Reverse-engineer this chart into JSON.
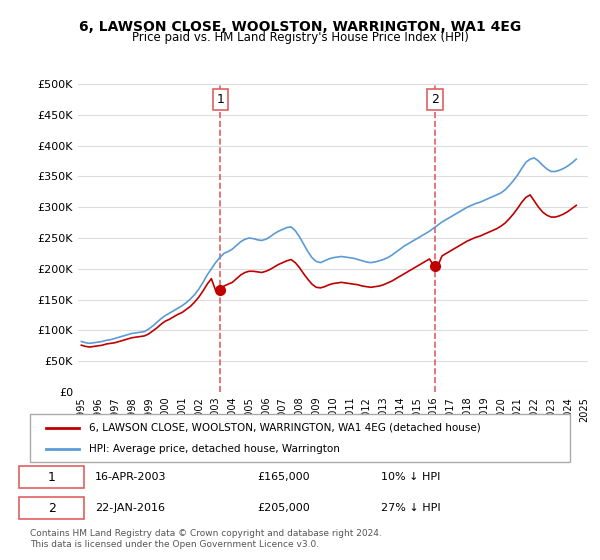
{
  "title": "6, LAWSON CLOSE, WOOLSTON, WARRINGTON, WA1 4EG",
  "subtitle": "Price paid vs. HM Land Registry's House Price Index (HPI)",
  "xlabel": "",
  "ylabel": "",
  "ylim": [
    0,
    500000
  ],
  "yticks": [
    0,
    50000,
    100000,
    150000,
    200000,
    250000,
    300000,
    350000,
    400000,
    450000,
    500000
  ],
  "ytick_labels": [
    "£0",
    "£50K",
    "£100K",
    "£150K",
    "£200K",
    "£250K",
    "£300K",
    "£350K",
    "£400K",
    "£450K",
    "£500K"
  ],
  "hpi_color": "#5b9bd5",
  "price_color": "#c00000",
  "marker_color": "#c00000",
  "dashed_line_color": "#e06060",
  "background_color": "#ffffff",
  "grid_color": "#dddddd",
  "sale1_date": 2003.29,
  "sale1_price": 165000,
  "sale1_label": "1",
  "sale2_date": 2016.07,
  "sale2_price": 205000,
  "sale2_label": "2",
  "legend_label1": "6, LAWSON CLOSE, WOOLSTON, WARRINGTON, WA1 4EG (detached house)",
  "legend_label2": "HPI: Average price, detached house, Warrington",
  "table_row1": "1     16-APR-2003     £165,000     10% ↓ HPI",
  "table_row2": "2     22-JAN-2016     £205,000     27% ↓ HPI",
  "footer": "Contains HM Land Registry data © Crown copyright and database right 2024.\nThis data is licensed under the Open Government Licence v3.0.",
  "hpi_years": [
    1995.0,
    1995.25,
    1995.5,
    1995.75,
    1996.0,
    1996.25,
    1996.5,
    1996.75,
    1997.0,
    1997.25,
    1997.5,
    1997.75,
    1998.0,
    1998.25,
    1998.5,
    1998.75,
    1999.0,
    1999.25,
    1999.5,
    1999.75,
    2000.0,
    2000.25,
    2000.5,
    2000.75,
    2001.0,
    2001.25,
    2001.5,
    2001.75,
    2002.0,
    2002.25,
    2002.5,
    2002.75,
    2003.0,
    2003.25,
    2003.5,
    2003.75,
    2004.0,
    2004.25,
    2004.5,
    2004.75,
    2005.0,
    2005.25,
    2005.5,
    2005.75,
    2006.0,
    2006.25,
    2006.5,
    2006.75,
    2007.0,
    2007.25,
    2007.5,
    2007.75,
    2008.0,
    2008.25,
    2008.5,
    2008.75,
    2009.0,
    2009.25,
    2009.5,
    2009.75,
    2010.0,
    2010.25,
    2010.5,
    2010.75,
    2011.0,
    2011.25,
    2011.5,
    2011.75,
    2012.0,
    2012.25,
    2012.5,
    2012.75,
    2013.0,
    2013.25,
    2013.5,
    2013.75,
    2014.0,
    2014.25,
    2014.5,
    2014.75,
    2015.0,
    2015.25,
    2015.5,
    2015.75,
    2016.0,
    2016.25,
    2016.5,
    2016.75,
    2017.0,
    2017.25,
    2017.5,
    2017.75,
    2018.0,
    2018.25,
    2018.5,
    2018.75,
    2019.0,
    2019.25,
    2019.5,
    2019.75,
    2020.0,
    2020.25,
    2020.5,
    2020.75,
    2021.0,
    2021.25,
    2021.5,
    2021.75,
    2022.0,
    2022.25,
    2022.5,
    2022.75,
    2023.0,
    2023.25,
    2023.5,
    2023.75,
    2024.0,
    2024.25,
    2024.5
  ],
  "hpi_values": [
    82000,
    80000,
    79000,
    80000,
    81000,
    82000,
    84000,
    85000,
    87000,
    89000,
    91000,
    93000,
    95000,
    96000,
    97000,
    98000,
    102000,
    107000,
    113000,
    119000,
    124000,
    128000,
    132000,
    136000,
    140000,
    145000,
    151000,
    158000,
    167000,
    178000,
    190000,
    200000,
    210000,
    218000,
    225000,
    228000,
    232000,
    238000,
    244000,
    248000,
    250000,
    249000,
    247000,
    246000,
    248000,
    252000,
    257000,
    261000,
    264000,
    267000,
    268000,
    262000,
    252000,
    240000,
    228000,
    218000,
    212000,
    210000,
    213000,
    216000,
    218000,
    219000,
    220000,
    219000,
    218000,
    217000,
    215000,
    213000,
    211000,
    210000,
    211000,
    213000,
    215000,
    218000,
    222000,
    227000,
    232000,
    237000,
    241000,
    245000,
    249000,
    253000,
    257000,
    261000,
    266000,
    271000,
    276000,
    280000,
    284000,
    288000,
    292000,
    296000,
    300000,
    303000,
    306000,
    308000,
    311000,
    314000,
    317000,
    320000,
    323000,
    328000,
    335000,
    343000,
    352000,
    363000,
    373000,
    378000,
    380000,
    375000,
    368000,
    362000,
    358000,
    358000,
    360000,
    363000,
    367000,
    372000,
    378000
  ],
  "price_years": [
    1995.0,
    1995.25,
    1995.5,
    1995.75,
    1996.0,
    1996.25,
    1996.5,
    1996.75,
    1997.0,
    1997.25,
    1997.5,
    1997.75,
    1998.0,
    1998.25,
    1998.5,
    1998.75,
    1999.0,
    1999.25,
    1999.5,
    1999.75,
    2000.0,
    2000.25,
    2000.5,
    2000.75,
    2001.0,
    2001.25,
    2001.5,
    2001.75,
    2002.0,
    2002.25,
    2002.5,
    2002.75,
    2003.0,
    2003.25,
    2003.5,
    2003.75,
    2004.0,
    2004.25,
    2004.5,
    2004.75,
    2005.0,
    2005.25,
    2005.5,
    2005.75,
    2006.0,
    2006.25,
    2006.5,
    2006.75,
    2007.0,
    2007.25,
    2007.5,
    2007.75,
    2008.0,
    2008.25,
    2008.5,
    2008.75,
    2009.0,
    2009.25,
    2009.5,
    2009.75,
    2010.0,
    2010.25,
    2010.5,
    2010.75,
    2011.0,
    2011.25,
    2011.5,
    2011.75,
    2012.0,
    2012.25,
    2012.5,
    2012.75,
    2013.0,
    2013.25,
    2013.5,
    2013.75,
    2014.0,
    2014.25,
    2014.5,
    2014.75,
    2015.0,
    2015.25,
    2015.5,
    2015.75,
    2016.0,
    2016.25,
    2016.5,
    2016.75,
    2017.0,
    2017.25,
    2017.5,
    2017.75,
    2018.0,
    2018.25,
    2018.5,
    2018.75,
    2019.0,
    2019.25,
    2019.5,
    2019.75,
    2020.0,
    2020.25,
    2020.5,
    2020.75,
    2021.0,
    2021.25,
    2021.5,
    2021.75,
    2022.0,
    2022.25,
    2022.5,
    2022.75,
    2023.0,
    2023.25,
    2023.5,
    2023.75,
    2024.0,
    2024.25,
    2024.5
  ],
  "price_values": [
    76000,
    74000,
    73000,
    74000,
    75000,
    76000,
    78000,
    79000,
    80000,
    82000,
    84000,
    86000,
    88000,
    89000,
    90000,
    91000,
    94000,
    99000,
    104000,
    110000,
    115000,
    118000,
    122000,
    126000,
    129000,
    134000,
    139000,
    146000,
    154000,
    164000,
    175000,
    184000,
    165000,
    165000,
    172000,
    175000,
    178000,
    184000,
    190000,
    194000,
    196000,
    196000,
    195000,
    194000,
    196000,
    199000,
    203000,
    207000,
    210000,
    213000,
    215000,
    210000,
    202000,
    192000,
    183000,
    175000,
    170000,
    169000,
    171000,
    174000,
    176000,
    177000,
    178000,
    177000,
    176000,
    175000,
    174000,
    172000,
    171000,
    170000,
    171000,
    172000,
    174000,
    177000,
    180000,
    184000,
    188000,
    192000,
    196000,
    200000,
    204000,
    208000,
    212000,
    216000,
    205000,
    205000,
    221000,
    225000,
    229000,
    233000,
    237000,
    241000,
    245000,
    248000,
    251000,
    253000,
    256000,
    259000,
    262000,
    265000,
    269000,
    274000,
    281000,
    289000,
    298000,
    308000,
    316000,
    320000,
    310000,
    300000,
    292000,
    287000,
    284000,
    284000,
    286000,
    289000,
    293000,
    298000,
    303000
  ]
}
